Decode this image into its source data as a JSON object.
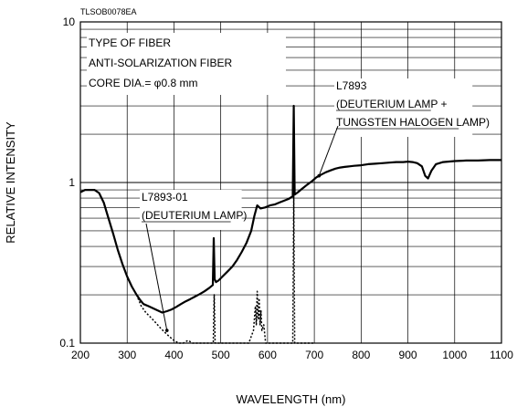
{
  "chart_data": {
    "type": "line",
    "figure_code": "TLSOB0078EA",
    "xlabel": "WAVELENGTH (nm)",
    "ylabel": "RELATIVE INTENSITY",
    "xlim": [
      200,
      1100
    ],
    "ylim": [
      0.1,
      10
    ],
    "y_scale": "log",
    "grid": true,
    "x_ticks": [
      "200",
      "300",
      "400",
      "500",
      "600",
      "700",
      "800",
      "900",
      "1000",
      "1100"
    ],
    "y_ticks": [
      "0.1",
      "1",
      "10"
    ],
    "info_box": [
      "TYPE OF FIBER",
      "ANTI-SOLARIZATION FIBER",
      "CORE DIA.= φ0.8 mm"
    ],
    "series": [
      {
        "name": "L7893",
        "callout": [
          "L7893",
          "(DEUTERIUM LAMP +",
          "TUNGSTEN HALOGEN LAMP)"
        ],
        "color": "#000000",
        "style": "solid",
        "points": [
          [
            200,
            0.87
          ],
          [
            210,
            0.9
          ],
          [
            220,
            0.9
          ],
          [
            230,
            0.9
          ],
          [
            240,
            0.86
          ],
          [
            250,
            0.75
          ],
          [
            260,
            0.6
          ],
          [
            270,
            0.48
          ],
          [
            280,
            0.38
          ],
          [
            290,
            0.31
          ],
          [
            300,
            0.26
          ],
          [
            310,
            0.225
          ],
          [
            320,
            0.2
          ],
          [
            328,
            0.185
          ],
          [
            335,
            0.175
          ],
          [
            345,
            0.17
          ],
          [
            355,
            0.165
          ],
          [
            365,
            0.16
          ],
          [
            375,
            0.155
          ],
          [
            385,
            0.158
          ],
          [
            395,
            0.162
          ],
          [
            405,
            0.168
          ],
          [
            415,
            0.175
          ],
          [
            425,
            0.182
          ],
          [
            435,
            0.188
          ],
          [
            445,
            0.195
          ],
          [
            455,
            0.202
          ],
          [
            465,
            0.21
          ],
          [
            475,
            0.22
          ],
          [
            483,
            0.23
          ],
          [
            485,
            0.45
          ],
          [
            487,
            0.25
          ],
          [
            490,
            0.24
          ],
          [
            495,
            0.245
          ],
          [
            505,
            0.262
          ],
          [
            515,
            0.28
          ],
          [
            525,
            0.3
          ],
          [
            535,
            0.33
          ],
          [
            545,
            0.37
          ],
          [
            555,
            0.42
          ],
          [
            565,
            0.5
          ],
          [
            572,
            0.62
          ],
          [
            578,
            0.72
          ],
          [
            585,
            0.69
          ],
          [
            595,
            0.7
          ],
          [
            605,
            0.72
          ],
          [
            615,
            0.73
          ],
          [
            625,
            0.75
          ],
          [
            635,
            0.77
          ],
          [
            645,
            0.79
          ],
          [
            654,
            0.82
          ],
          [
            656,
            3.0
          ],
          [
            658,
            0.84
          ],
          [
            665,
            0.87
          ],
          [
            675,
            0.92
          ],
          [
            685,
            0.97
          ],
          [
            695,
            1.02
          ],
          [
            705,
            1.08
          ],
          [
            715,
            1.12
          ],
          [
            725,
            1.16
          ],
          [
            735,
            1.19
          ],
          [
            745,
            1.22
          ],
          [
            755,
            1.24
          ],
          [
            765,
            1.25
          ],
          [
            775,
            1.26
          ],
          [
            785,
            1.27
          ],
          [
            800,
            1.28
          ],
          [
            815,
            1.3
          ],
          [
            830,
            1.31
          ],
          [
            845,
            1.32
          ],
          [
            860,
            1.33
          ],
          [
            875,
            1.34
          ],
          [
            890,
            1.34
          ],
          [
            900,
            1.35
          ],
          [
            910,
            1.34
          ],
          [
            920,
            1.32
          ],
          [
            930,
            1.26
          ],
          [
            937,
            1.1
          ],
          [
            943,
            1.06
          ],
          [
            950,
            1.18
          ],
          [
            960,
            1.3
          ],
          [
            975,
            1.34
          ],
          [
            1000,
            1.36
          ],
          [
            1025,
            1.37
          ],
          [
            1050,
            1.37
          ],
          [
            1075,
            1.38
          ],
          [
            1100,
            1.38
          ]
        ]
      },
      {
        "name": "L7893-01",
        "callout": [
          "L7893-01",
          "(DEUTERIUM LAMP)"
        ],
        "color": "#000000",
        "style": "dotted",
        "points": [
          [
            320,
            0.2
          ],
          [
            330,
            0.17
          ],
          [
            340,
            0.155
          ],
          [
            350,
            0.145
          ],
          [
            360,
            0.135
          ],
          [
            370,
            0.125
          ],
          [
            380,
            0.117
          ],
          [
            390,
            0.11
          ],
          [
            400,
            0.104
          ],
          [
            410,
            0.1
          ],
          [
            420,
            0.1
          ],
          [
            430,
            0.104
          ],
          [
            440,
            0.1
          ],
          [
            460,
            0.1
          ],
          [
            480,
            0.1
          ],
          [
            484,
            0.1
          ],
          [
            486,
            0.2
          ],
          [
            488,
            0.1
          ],
          [
            560,
            0.1
          ],
          [
            570,
            0.12
          ],
          [
            574,
            0.17
          ],
          [
            576,
            0.13
          ],
          [
            578,
            0.21
          ],
          [
            580,
            0.14
          ],
          [
            582,
            0.19
          ],
          [
            584,
            0.13
          ],
          [
            586,
            0.16
          ],
          [
            588,
            0.12
          ],
          [
            592,
            0.13
          ],
          [
            596,
            0.1
          ],
          [
            650,
            0.1
          ],
          [
            654,
            0.1
          ],
          [
            656,
            0.85
          ],
          [
            658,
            0.1
          ],
          [
            700,
            0.1
          ]
        ]
      }
    ]
  }
}
